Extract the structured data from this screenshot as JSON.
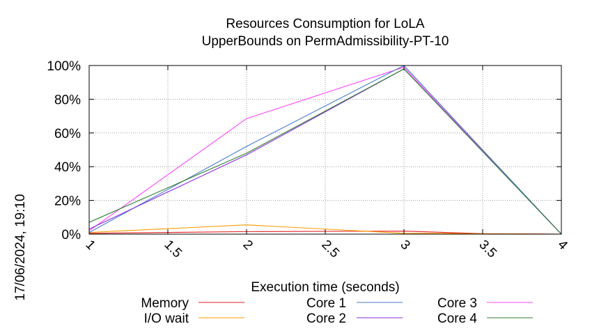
{
  "chart_data": {
    "type": "line",
    "title": "Resources Consumption for LoLA",
    "subtitle": "UpperBounds on PermAdmissibility-PT-10",
    "xlabel": "Execution time (seconds)",
    "ylabel": "",
    "side_label": "17/06/2024, 19:10",
    "xlim": [
      1,
      4
    ],
    "ylim": [
      0,
      100
    ],
    "x_ticks": [
      1,
      1.5,
      2,
      2.5,
      3,
      3.5,
      4
    ],
    "x_tick_labels": [
      "1",
      "1.5",
      "2",
      "2.5",
      "3",
      "3.5",
      "4"
    ],
    "y_ticks": [
      0,
      20,
      40,
      60,
      80,
      100
    ],
    "y_tick_labels": [
      "0%",
      "20%",
      "40%",
      "60%",
      "80%",
      "100%"
    ],
    "grid": true,
    "legend_position": "bottom",
    "series": [
      {
        "name": "Memory",
        "color": "#e41a1c",
        "x": [
          1,
          2,
          3,
          3.5,
          4
        ],
        "y": [
          0.5,
          1.5,
          1.8,
          0.3,
          0
        ]
      },
      {
        "name": "I/O wait",
        "color": "#ff9900",
        "x": [
          1,
          2,
          3,
          4
        ],
        "y": [
          1,
          5.5,
          0.5,
          0
        ]
      },
      {
        "name": "Core 1",
        "color": "#4a7ec9",
        "x": [
          1,
          2,
          3,
          4
        ],
        "y": [
          1,
          52,
          100,
          0
        ]
      },
      {
        "name": "Core 2",
        "color": "#8a2be2",
        "x": [
          1,
          2,
          3,
          4
        ],
        "y": [
          3,
          47,
          98,
          0
        ]
      },
      {
        "name": "Core 3",
        "color": "#ff44ff",
        "x": [
          1,
          2,
          3,
          4
        ],
        "y": [
          2,
          68.5,
          99,
          0
        ]
      },
      {
        "name": "Core 4",
        "color": "#2e7d32",
        "x": [
          1,
          2,
          3,
          4
        ],
        "y": [
          7,
          48,
          98,
          0
        ]
      }
    ]
  }
}
